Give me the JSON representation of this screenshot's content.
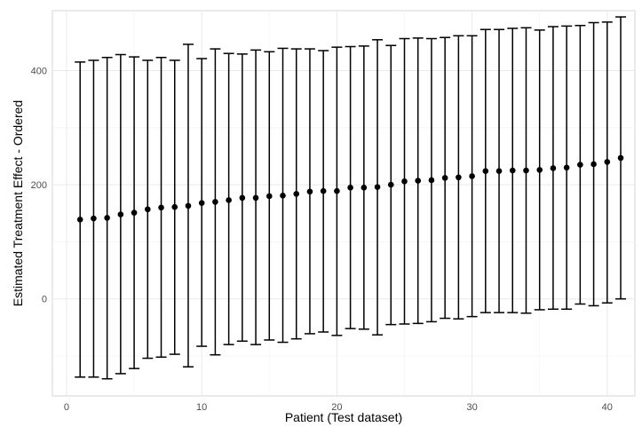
{
  "chart_data": {
    "type": "errorbar",
    "title": "",
    "xlabel": "Patient (Test dataset)",
    "ylabel": "Estimated Treatment Effect - Ordered",
    "xlim": [
      -1.05,
      42.05
    ],
    "ylim": [
      -170,
      505
    ],
    "x_ticks": [
      0,
      10,
      20,
      30,
      40
    ],
    "y_ticks": [
      0,
      200,
      400
    ],
    "grid": true,
    "legend": "none",
    "point_color": "#000000",
    "panel_background": "#ffffff",
    "grid_major_color": "#e9e9e9",
    "grid_minor_color": "#f4f4f4",
    "points": [
      {
        "x": 1,
        "y": 139,
        "ymin": -137,
        "ymax": 415
      },
      {
        "x": 2,
        "y": 141,
        "ymin": -137,
        "ymax": 418
      },
      {
        "x": 3,
        "y": 142,
        "ymin": -140,
        "ymax": 423
      },
      {
        "x": 4,
        "y": 148,
        "ymin": -131,
        "ymax": 428
      },
      {
        "x": 5,
        "y": 151,
        "ymin": -122,
        "ymax": 424
      },
      {
        "x": 6,
        "y": 157,
        "ymin": -104,
        "ymax": 418
      },
      {
        "x": 7,
        "y": 160,
        "ymin": -102,
        "ymax": 423
      },
      {
        "x": 8,
        "y": 161,
        "ymin": -97,
        "ymax": 418
      },
      {
        "x": 9,
        "y": 163,
        "ymin": -119,
        "ymax": 446
      },
      {
        "x": 10,
        "y": 168,
        "ymin": -83,
        "ymax": 421
      },
      {
        "x": 11,
        "y": 170,
        "ymin": -98,
        "ymax": 438
      },
      {
        "x": 12,
        "y": 173,
        "ymin": -80,
        "ymax": 430
      },
      {
        "x": 13,
        "y": 177,
        "ymin": -74,
        "ymax": 429
      },
      {
        "x": 14,
        "y": 177,
        "ymin": -80,
        "ymax": 436
      },
      {
        "x": 15,
        "y": 180,
        "ymin": -72,
        "ymax": 433
      },
      {
        "x": 16,
        "y": 181,
        "ymin": -76,
        "ymax": 439
      },
      {
        "x": 17,
        "y": 184,
        "ymin": -70,
        "ymax": 438
      },
      {
        "x": 18,
        "y": 188,
        "ymin": -61,
        "ymax": 438
      },
      {
        "x": 19,
        "y": 189,
        "ymin": -58,
        "ymax": 435
      },
      {
        "x": 20,
        "y": 189,
        "ymin": -64,
        "ymax": 441
      },
      {
        "x": 21,
        "y": 195,
        "ymin": -52,
        "ymax": 442
      },
      {
        "x": 22,
        "y": 195,
        "ymin": -53,
        "ymax": 443
      },
      {
        "x": 23,
        "y": 196,
        "ymin": -63,
        "ymax": 454
      },
      {
        "x": 24,
        "y": 200,
        "ymin": -45,
        "ymax": 444
      },
      {
        "x": 25,
        "y": 206,
        "ymin": -44,
        "ymax": 456
      },
      {
        "x": 26,
        "y": 207,
        "ymin": -43,
        "ymax": 457
      },
      {
        "x": 27,
        "y": 208,
        "ymin": -40,
        "ymax": 456
      },
      {
        "x": 28,
        "y": 212,
        "ymin": -34,
        "ymax": 458
      },
      {
        "x": 29,
        "y": 213,
        "ymin": -35,
        "ymax": 461
      },
      {
        "x": 30,
        "y": 215,
        "ymin": -31,
        "ymax": 461
      },
      {
        "x": 31,
        "y": 224,
        "ymin": -24,
        "ymax": 472
      },
      {
        "x": 32,
        "y": 224,
        "ymin": -24,
        "ymax": 472
      },
      {
        "x": 33,
        "y": 225,
        "ymin": -24,
        "ymax": 474
      },
      {
        "x": 34,
        "y": 225,
        "ymin": -25,
        "ymax": 475
      },
      {
        "x": 35,
        "y": 226,
        "ymin": -19,
        "ymax": 471
      },
      {
        "x": 36,
        "y": 229,
        "ymin": -18,
        "ymax": 477
      },
      {
        "x": 37,
        "y": 230,
        "ymin": -18,
        "ymax": 478
      },
      {
        "x": 38,
        "y": 235,
        "ymin": -9,
        "ymax": 479
      },
      {
        "x": 39,
        "y": 236,
        "ymin": -12,
        "ymax": 484
      },
      {
        "x": 40,
        "y": 240,
        "ymin": -7,
        "ymax": 485
      },
      {
        "x": 41,
        "y": 247,
        "ymin": 0,
        "ymax": 494
      }
    ]
  }
}
